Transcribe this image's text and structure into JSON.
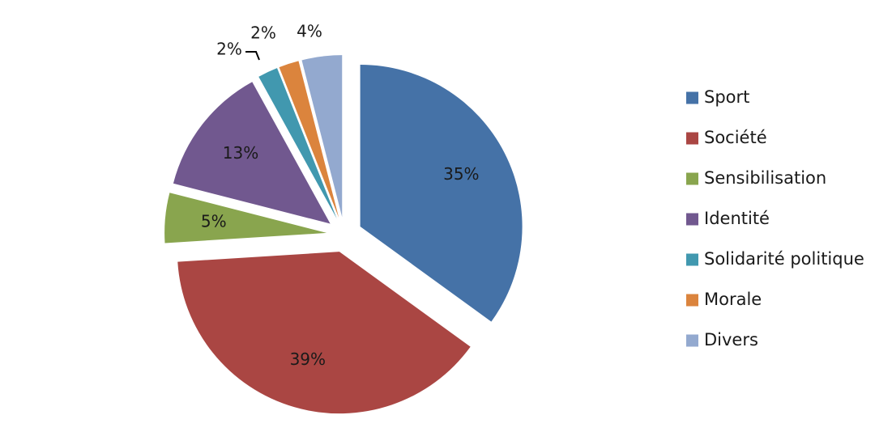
{
  "chart_data": {
    "type": "pie",
    "exploded": true,
    "legend_position": "right",
    "slices": [
      {
        "label": "Sport",
        "value": 35,
        "display": "35%",
        "color": "#4572A7"
      },
      {
        "label": "Société",
        "value": 39,
        "display": "39%",
        "color": "#AA4643"
      },
      {
        "label": "Sensibilisation",
        "value": 5,
        "display": "5%",
        "color": "#89A54E"
      },
      {
        "label": "Identité",
        "value": 13,
        "display": "13%",
        "color": "#71588F"
      },
      {
        "label": "Solidarité politique",
        "value": 2,
        "display": "2%",
        "color": "#4198AF"
      },
      {
        "label": "Morale",
        "value": 2,
        "display": "2%",
        "color": "#DB843D"
      },
      {
        "label": "Divers",
        "value": 4,
        "display": "4%",
        "color": "#93A9CF"
      }
    ]
  }
}
